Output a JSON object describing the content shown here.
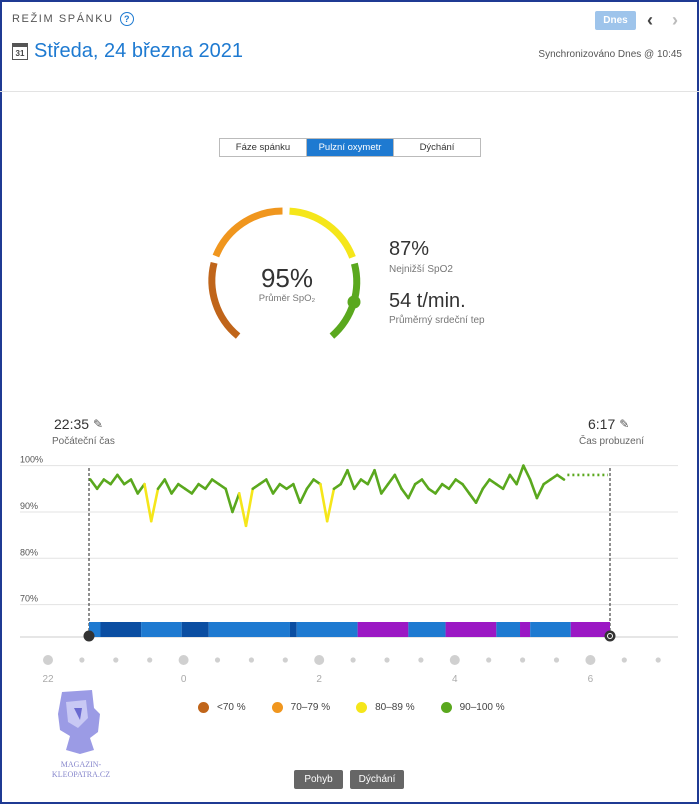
{
  "header": {
    "mode_label": "REŽIM SPÁNKU",
    "help_icon": "?",
    "calendar_day": "31",
    "date_title": "Středa, 24 března 2021",
    "today_button": "Dnes",
    "prev_icon": "‹",
    "next_icon": "›",
    "sync_text": "Synchronizováno Dnes @ 10:45"
  },
  "tabs": [
    {
      "label": "Fáze spánku",
      "active": false
    },
    {
      "label": "Pulzní oxymetr",
      "active": true
    },
    {
      "label": "Dýchání",
      "active": false
    }
  ],
  "summary": {
    "avg_value": "95%",
    "avg_label": "Průměr SpO₂",
    "lowest_value": "87%",
    "lowest_label": "Nejnižší SpO2",
    "hr_value": "54 t/min.",
    "hr_label": "Průměrný srdeční tep",
    "gauge_level_percent": 95
  },
  "times": {
    "start_value": "22:35",
    "start_label": "Počáteční čas",
    "end_value": "6:17",
    "end_label": "Čas probuzení"
  },
  "chart_data": {
    "type": "line",
    "yticks": [
      "100%",
      "90%",
      "80%",
      "70%"
    ],
    "ylim": [
      63,
      101
    ],
    "xlim_hours": [
      22.58,
      30.28
    ],
    "x_tick_labels": [
      "22",
      "0",
      "2",
      "4",
      "6"
    ],
    "series": [
      {
        "x_hours": [
          22.6,
          22.7,
          22.8,
          22.9,
          23.0,
          23.1,
          23.2,
          23.3,
          23.4,
          23.5,
          23.6,
          23.7,
          23.8,
          23.9,
          24.0,
          24.1,
          24.2,
          24.3,
          24.4,
          24.5,
          24.6,
          24.7,
          24.8,
          24.9,
          25.0,
          25.1,
          25.2,
          25.3,
          25.4,
          25.5,
          25.6,
          25.7,
          25.8,
          25.9,
          26.0,
          26.1,
          26.2,
          26.3,
          26.4,
          26.5,
          26.6,
          26.7,
          26.8,
          26.9,
          27.0,
          27.1,
          27.2,
          27.3,
          27.4,
          27.5,
          27.6,
          27.7,
          27.8,
          27.9,
          28.0,
          28.1,
          28.2,
          28.3,
          28.4,
          28.5,
          28.6,
          28.7,
          28.8,
          28.9,
          29.0,
          29.1,
          29.2,
          29.3,
          29.4,
          29.5,
          29.6
        ],
        "spo2": [
          97,
          95,
          97,
          96,
          98,
          96,
          97,
          94,
          96,
          88,
          95,
          97,
          94,
          96,
          95,
          94,
          96,
          95,
          97,
          96,
          95,
          90,
          94,
          87,
          95,
          96,
          97,
          94,
          96,
          95,
          96,
          92,
          95,
          97,
          96,
          88,
          95,
          96,
          99,
          95,
          97,
          96,
          99,
          94,
          96,
          98,
          95,
          93,
          96,
          97,
          95,
          94,
          96,
          95,
          97,
          96,
          94,
          92,
          95,
          97,
          96,
          95,
          98,
          96,
          100,
          97,
          93,
          96,
          97,
          98,
          97
        ]
      }
    ],
    "dotted_tail_hours": [
      29.65,
      30.25
    ],
    "dotted_tail_value": 98,
    "legend": [
      {
        "label": "<70 %",
        "color": "#c0651a"
      },
      {
        "label": "70–79 %",
        "color": "#f0961e"
      },
      {
        "label": "80–89 %",
        "color": "#f5e61a"
      },
      {
        "label": "90–100 %",
        "color": "#5aa81e"
      }
    ],
    "stage_bar": [
      {
        "start": 22.58,
        "end": 22.75,
        "color": "#1e7ad1"
      },
      {
        "start": 22.75,
        "end": 23.35,
        "color": "#0b4ea2"
      },
      {
        "start": 23.35,
        "end": 23.95,
        "color": "#1e7ad1"
      },
      {
        "start": 23.95,
        "end": 24.35,
        "color": "#0b4ea2"
      },
      {
        "start": 24.35,
        "end": 25.55,
        "color": "#1e7ad1"
      },
      {
        "start": 25.55,
        "end": 25.65,
        "color": "#0b4ea2"
      },
      {
        "start": 25.65,
        "end": 26.55,
        "color": "#1e7ad1"
      },
      {
        "start": 26.55,
        "end": 27.3,
        "color": "#9b18c4"
      },
      {
        "start": 27.3,
        "end": 27.85,
        "color": "#1e7ad1"
      },
      {
        "start": 27.85,
        "end": 28.6,
        "color": "#9b18c4"
      },
      {
        "start": 28.6,
        "end": 28.95,
        "color": "#1e7ad1"
      },
      {
        "start": 28.95,
        "end": 29.1,
        "color": "#9b18c4"
      },
      {
        "start": 29.1,
        "end": 29.7,
        "color": "#1e7ad1"
      },
      {
        "start": 29.7,
        "end": 30.28,
        "color": "#9b18c4"
      }
    ]
  },
  "watermark": {
    "text_line1": "MAGAZIN-",
    "text_line2": "KLEOPATRA.CZ"
  },
  "buttons": {
    "movement": "Pohyb",
    "breathing": "Dýchání"
  }
}
